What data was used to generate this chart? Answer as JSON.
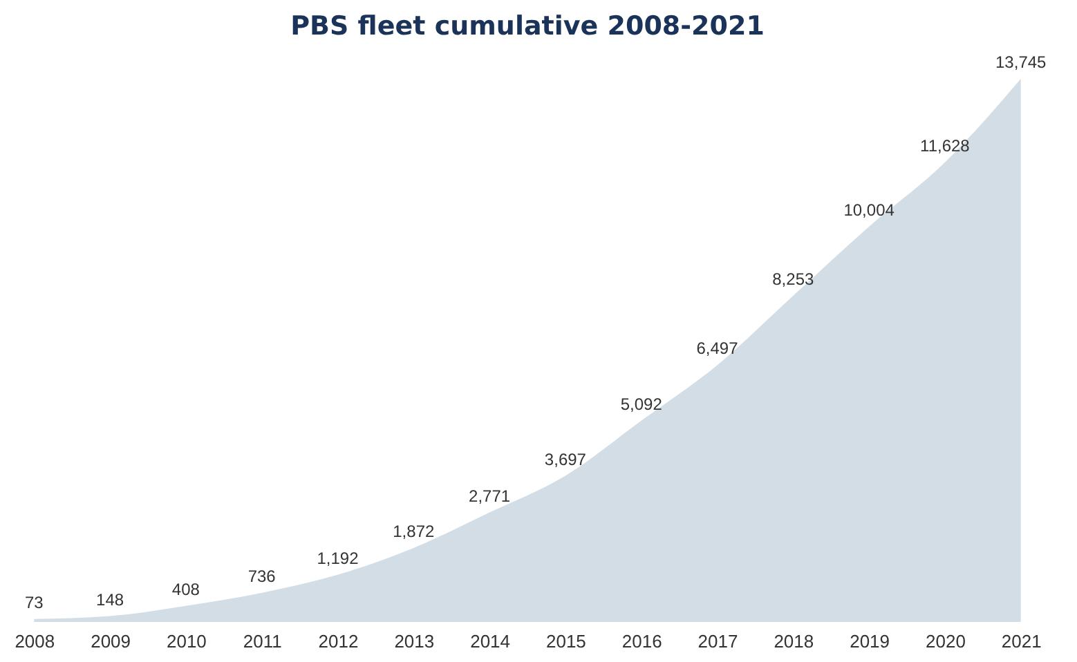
{
  "chart_data": {
    "type": "area",
    "title": "PBS fleet cumulative 2008-2021",
    "categories": [
      "2008",
      "2009",
      "2010",
      "2011",
      "2012",
      "2013",
      "2014",
      "2015",
      "2016",
      "2017",
      "2018",
      "2019",
      "2020",
      "2021"
    ],
    "values": [
      73,
      148,
      408,
      736,
      1192,
      1872,
      2771,
      3697,
      5092,
      6497,
      8253,
      10004,
      11628,
      13745
    ],
    "value_labels": [
      "73",
      "148",
      "408",
      "736",
      "1,192",
      "1,872",
      "2,771",
      "3,697",
      "5,092",
      "6,497",
      "8,253",
      "10,004",
      "11,628",
      "13,745"
    ],
    "color": "#d3dde5"
  }
}
